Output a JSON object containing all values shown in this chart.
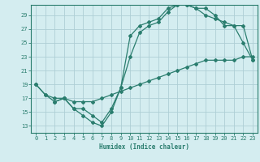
{
  "xlabel": "Humidex (Indice chaleur)",
  "bg_color": "#d4edf0",
  "grid_color": "#aecfd5",
  "line_color": "#2a7d6e",
  "xlim": [
    -0.5,
    23.5
  ],
  "ylim": [
    12.0,
    30.5
  ],
  "xticks": [
    0,
    1,
    2,
    3,
    4,
    5,
    6,
    7,
    8,
    9,
    10,
    11,
    12,
    13,
    14,
    15,
    16,
    17,
    18,
    19,
    20,
    21,
    22,
    23
  ],
  "yticks": [
    13,
    15,
    17,
    19,
    21,
    23,
    25,
    27,
    29
  ],
  "line1_x": [
    0,
    1,
    2,
    3,
    4,
    5,
    6,
    7,
    8,
    9,
    10,
    11,
    12,
    13,
    14,
    15,
    16,
    17,
    18,
    19,
    20,
    21,
    22,
    23
  ],
  "line1_y": [
    19.0,
    17.5,
    16.5,
    17.0,
    15.5,
    14.5,
    13.5,
    13.0,
    15.0,
    18.5,
    26.0,
    27.5,
    28.0,
    28.5,
    30.0,
    30.5,
    30.5,
    30.0,
    30.0,
    29.0,
    27.5,
    27.5,
    25.0,
    22.5
  ],
  "line2_x": [
    0,
    1,
    2,
    3,
    4,
    5,
    6,
    7,
    8,
    9,
    10,
    11,
    12,
    13,
    14,
    15,
    16,
    17,
    18,
    19,
    20,
    21,
    22,
    23
  ],
  "line2_y": [
    19.0,
    17.5,
    17.0,
    17.0,
    16.5,
    16.5,
    16.5,
    17.0,
    17.5,
    18.0,
    18.5,
    19.0,
    19.5,
    20.0,
    20.5,
    21.0,
    21.5,
    22.0,
    22.5,
    22.5,
    22.5,
    22.5,
    23.0,
    23.0
  ],
  "line3_x": [
    2,
    3,
    4,
    5,
    6,
    7,
    8,
    9,
    10,
    11,
    12,
    13,
    14,
    15,
    16,
    17,
    18,
    19,
    20,
    21,
    22,
    23
  ],
  "line3_y": [
    16.5,
    17.0,
    15.5,
    15.5,
    14.5,
    13.5,
    15.5,
    18.5,
    23.0,
    26.5,
    27.5,
    28.0,
    29.5,
    30.5,
    30.5,
    30.0,
    29.0,
    28.5,
    28.0,
    27.5,
    27.5,
    22.5
  ]
}
